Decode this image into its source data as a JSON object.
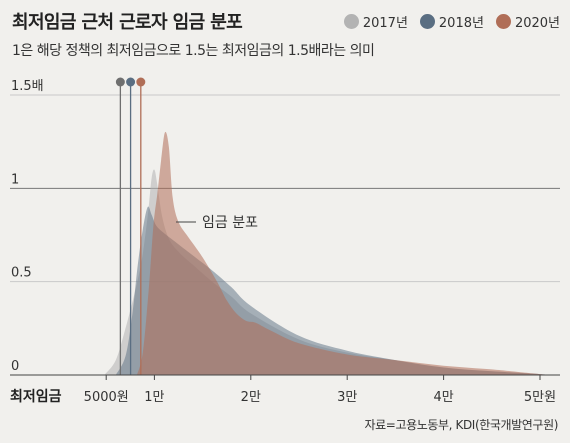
{
  "title": "최저임금 근처 근로자 임금 분포",
  "subtitle": "1은 해당 정책의 최저임금으로 1.5는 최저임금의 1.5배라는 의미",
  "legend": [
    {
      "label": "2017년",
      "color": "#b3b3b3"
    },
    {
      "label": "2018년",
      "color": "#5a6e82"
    },
    {
      "label": "2020년",
      "color": "#b06e57"
    }
  ],
  "source": "자료=고용노동부, KDI(한국개발연구원)",
  "annotation": "임금 분포",
  "chart_data": {
    "type": "area",
    "xlabel": "최저임금",
    "xlim": [
      0,
      52000
    ],
    "ylim": [
      0,
      1.5
    ],
    "x_ticks": [
      {
        "value": 5000,
        "label": "5000원"
      },
      {
        "value": 10000,
        "label": "1만"
      },
      {
        "value": 20000,
        "label": "2만"
      },
      {
        "value": 30000,
        "label": "3만"
      },
      {
        "value": 40000,
        "label": "4만"
      },
      {
        "value": 50000,
        "label": "5만원"
      }
    ],
    "y_ticks": [
      {
        "value": 0,
        "label": "0"
      },
      {
        "value": 0.5,
        "label": "0.5"
      },
      {
        "value": 1,
        "label": "1"
      },
      {
        "value": 1.5,
        "label": "1.5배"
      }
    ],
    "series": [
      {
        "name": "2017년",
        "color": "#b3b3b3",
        "min_wage": 6470,
        "points": [
          [
            4800,
            0
          ],
          [
            6000,
            0.08
          ],
          [
            7000,
            0.25
          ],
          [
            8000,
            0.45
          ],
          [
            8700,
            0.62
          ],
          [
            9300,
            0.85
          ],
          [
            9700,
            1.05
          ],
          [
            10000,
            1.1
          ],
          [
            10300,
            1.02
          ],
          [
            10800,
            0.85
          ],
          [
            11500,
            0.73
          ],
          [
            12500,
            0.66
          ],
          [
            14000,
            0.59
          ],
          [
            16000,
            0.5
          ],
          [
            18000,
            0.42
          ],
          [
            20000,
            0.33
          ],
          [
            25000,
            0.19
          ],
          [
            30000,
            0.12
          ],
          [
            35000,
            0.08
          ],
          [
            40000,
            0.04
          ],
          [
            45000,
            0.02
          ],
          [
            50000,
            0.005
          ],
          [
            51000,
            0
          ]
        ]
      },
      {
        "name": "2018년",
        "color": "#5a6e82",
        "min_wage": 7530,
        "points": [
          [
            6000,
            0
          ],
          [
            7000,
            0.1
          ],
          [
            7700,
            0.32
          ],
          [
            8300,
            0.6
          ],
          [
            8800,
            0.78
          ],
          [
            9300,
            0.9
          ],
          [
            9700,
            0.86
          ],
          [
            10200,
            0.8
          ],
          [
            11000,
            0.76
          ],
          [
            12000,
            0.72
          ],
          [
            13000,
            0.68
          ],
          [
            14500,
            0.62
          ],
          [
            16000,
            0.56
          ],
          [
            18000,
            0.47
          ],
          [
            20000,
            0.37
          ],
          [
            25000,
            0.21
          ],
          [
            30000,
            0.13
          ],
          [
            35000,
            0.08
          ],
          [
            40000,
            0.04
          ],
          [
            45000,
            0.02
          ],
          [
            50000,
            0.005
          ],
          [
            51000,
            0
          ]
        ]
      },
      {
        "name": "2020년",
        "color": "#b06e57",
        "min_wage": 8590,
        "points": [
          [
            8200,
            0
          ],
          [
            8800,
            0.12
          ],
          [
            9400,
            0.45
          ],
          [
            9900,
            0.8
          ],
          [
            10300,
            0.97
          ],
          [
            10700,
            1.15
          ],
          [
            11100,
            1.3
          ],
          [
            11500,
            1.22
          ],
          [
            11900,
            0.95
          ],
          [
            12500,
            0.82
          ],
          [
            13500,
            0.74
          ],
          [
            15000,
            0.63
          ],
          [
            16500,
            0.5
          ],
          [
            17500,
            0.4
          ],
          [
            18500,
            0.33
          ],
          [
            19500,
            0.29
          ],
          [
            20500,
            0.28
          ],
          [
            22000,
            0.24
          ],
          [
            25000,
            0.17
          ],
          [
            30000,
            0.11
          ],
          [
            35000,
            0.08
          ],
          [
            40000,
            0.05
          ],
          [
            45000,
            0.03
          ],
          [
            48000,
            0.015
          ],
          [
            51000,
            0
          ]
        ]
      }
    ]
  }
}
